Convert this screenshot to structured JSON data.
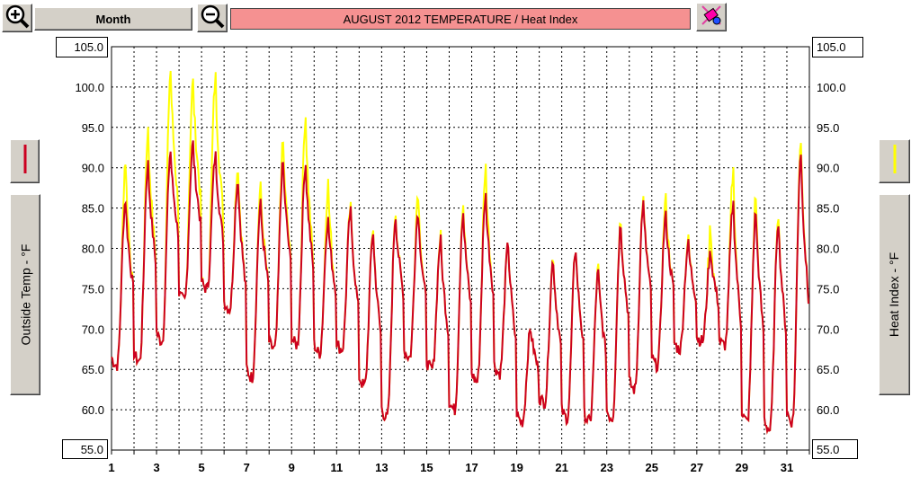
{
  "toolbar": {
    "zoom_in_icon": "magnifier-plus-icon",
    "zoom_out_icon": "magnifier-minus-icon",
    "period_label": "Month",
    "title": "AUGUST  2012   TEMPERATURE / Heat Index",
    "title_bg": "#f59191",
    "clear_icon": "eraser-icon"
  },
  "scale": {
    "left_top": "105.0",
    "left_bottom": "55.0",
    "right_top": "105.0",
    "right_bottom": "55.0"
  },
  "legend": {
    "left_label": "Outside Temp - °F",
    "right_label": "Heat Index - °F",
    "left_swatch_color": "#cc0020",
    "right_swatch_color": "#ffff00"
  },
  "chart_data": {
    "type": "line",
    "title": "AUGUST  2012   TEMPERATURE / Heat Index",
    "ylabel_left": "Outside Temp - °F",
    "ylabel_right": "Heat Index - °F",
    "ylim": [
      55,
      105
    ],
    "yticks": [
      "60.0",
      "65.0",
      "70.0",
      "75.0",
      "80.0",
      "85.0",
      "90.0",
      "95.0",
      "100.0"
    ],
    "xticks": [
      "1",
      "3",
      "5",
      "7",
      "9",
      "11",
      "13",
      "15",
      "17",
      "19",
      "21",
      "23",
      "25",
      "27",
      "29",
      "31"
    ],
    "xlim_days": [
      1,
      32
    ],
    "grid": true,
    "daily_min_max_temp": [
      [
        65.5,
        86.0
      ],
      [
        66.0,
        90.5
      ],
      [
        68.5,
        92.0
      ],
      [
        73.5,
        93.0
      ],
      [
        75.0,
        91.5
      ],
      [
        72.5,
        88.5
      ],
      [
        64.0,
        85.5
      ],
      [
        67.5,
        90.5
      ],
      [
        68.0,
        90.5
      ],
      [
        67.0,
        83.5
      ],
      [
        67.5,
        84.5
      ],
      [
        63.0,
        82.0
      ],
      [
        59.0,
        84.0
      ],
      [
        66.5,
        84.5
      ],
      [
        65.0,
        81.0
      ],
      [
        60.0,
        84.5
      ],
      [
        63.5,
        86.5
      ],
      [
        64.5,
        80.5
      ],
      [
        58.5,
        70.0
      ],
      [
        61.0,
        78.5
      ],
      [
        59.0,
        80.0
      ],
      [
        58.5,
        77.0
      ],
      [
        59.0,
        83.0
      ],
      [
        62.5,
        85.5
      ],
      [
        65.5,
        84.0
      ],
      [
        67.5,
        80.5
      ],
      [
        68.5,
        79.5
      ],
      [
        68.0,
        85.5
      ],
      [
        58.5,
        84.5
      ],
      [
        57.5,
        83.5
      ],
      [
        58.5,
        92.0
      ]
    ],
    "daily_max_heat_index": [
      91.0,
      94.5,
      102.0,
      100.5,
      101.0,
      90.0,
      87.5,
      93.0,
      96.5,
      88.0,
      85.0,
      82.5,
      84.5,
      87.0,
      81.5,
      85.5,
      90.0,
      80.0,
      71.0,
      79.0,
      80.0,
      77.5,
      83.5,
      86.0,
      86.0,
      81.0,
      82.5,
      89.5,
      86.5,
      84.5,
      93.5
    ],
    "series": [
      {
        "name": "Outside Temp - °F",
        "color": "#cc0020"
      },
      {
        "name": "Heat Index - °F",
        "color": "#ffff00"
      }
    ]
  }
}
